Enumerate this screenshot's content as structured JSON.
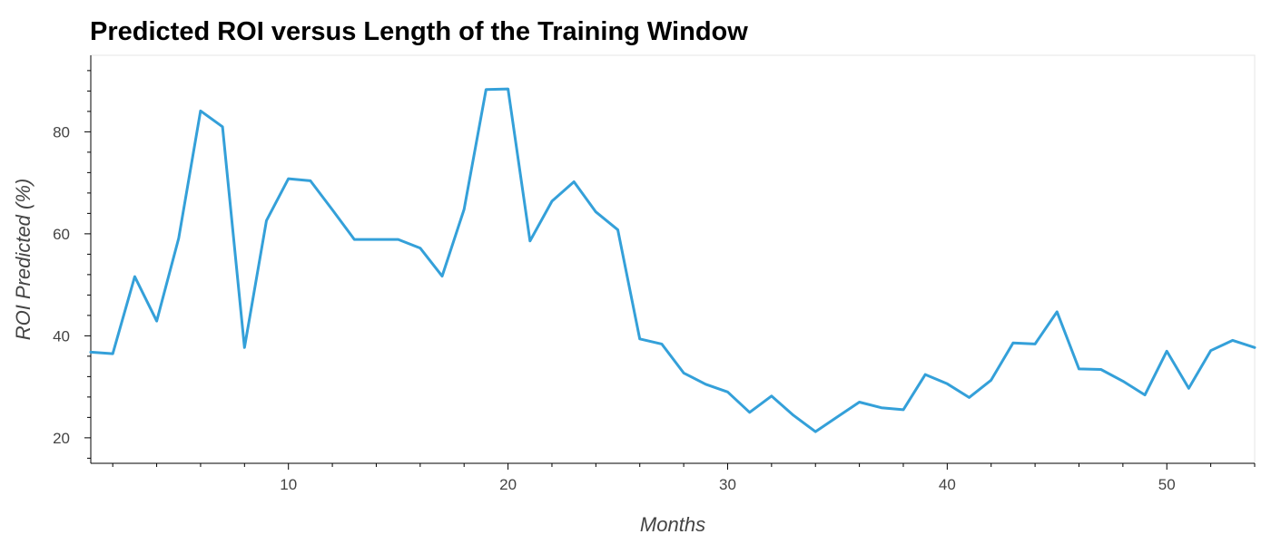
{
  "chart_data": {
    "type": "line",
    "title": "Predicted ROI versus Length of the Training Window",
    "xlabel": "Months",
    "ylabel": "ROI Predicted (%)",
    "xlim": [
      1,
      54
    ],
    "ylim": [
      15,
      95
    ],
    "x_major_ticks": [
      10,
      20,
      30,
      40,
      50
    ],
    "y_major_ticks": [
      20,
      40,
      60,
      80
    ],
    "x_minor_step": 2,
    "y_minor_step": 4,
    "grid": false,
    "legend": "none",
    "line_color": "#34a0d9",
    "series": [
      {
        "x": [
          1,
          2,
          3,
          4,
          5,
          6,
          7,
          8,
          9,
          10,
          11,
          12,
          13,
          14,
          15,
          16,
          17,
          18,
          19,
          20,
          21,
          22,
          23,
          24,
          25,
          26,
          27,
          28,
          29,
          30,
          31,
          32,
          33,
          34,
          35,
          36,
          37,
          38,
          39,
          40,
          41,
          42,
          43,
          44,
          45,
          46,
          47,
          48,
          49,
          50,
          51,
          52,
          53,
          54
        ],
        "values": [
          36.8,
          36.5,
          51.6,
          42.9,
          59.1,
          84.1,
          81.0,
          37.7,
          62.6,
          70.8,
          70.4,
          64.7,
          58.9,
          58.9,
          58.9,
          57.2,
          51.7,
          64.8,
          88.3,
          88.4,
          58.6,
          66.4,
          70.2,
          64.3,
          60.8,
          39.4,
          38.4,
          32.7,
          30.5,
          29.0,
          25.0,
          28.2,
          24.4,
          21.2,
          24.1,
          27.0,
          25.9,
          25.5,
          32.4,
          30.6,
          27.9,
          31.3,
          38.6,
          38.4,
          44.7,
          33.5,
          33.4,
          31.1,
          28.4,
          37.0,
          29.7,
          37.1,
          39.1,
          37.7
        ]
      }
    ]
  }
}
